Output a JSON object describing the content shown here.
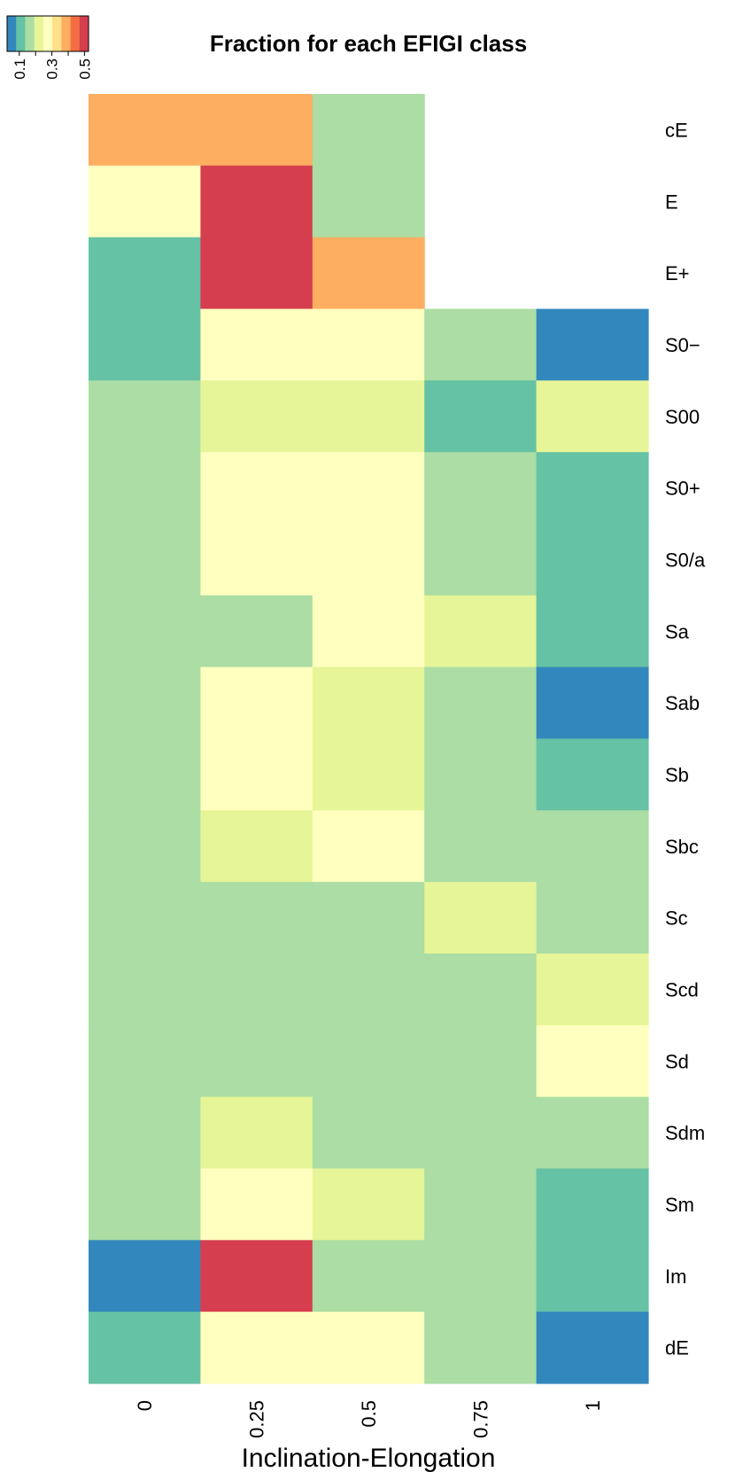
{
  "chart_data": {
    "type": "heatmap",
    "title": "Fraction for each EFIGI class",
    "xlabel": "Inclination-Elongation",
    "ylabel": "",
    "x_categories": [
      "0",
      "0.25",
      "0.5",
      "0.75",
      "1"
    ],
    "y_categories": [
      "cE",
      "E",
      "E+",
      "S0−",
      "S00",
      "S0+",
      "S0/a",
      "Sa",
      "Sab",
      "Sb",
      "Sbc",
      "Sc",
      "Scd",
      "Sd",
      "Sdm",
      "Sm",
      "Im",
      "dE"
    ],
    "values": [
      [
        0.4,
        0.4,
        0.18,
        null,
        null
      ],
      [
        0.25,
        0.5,
        0.18,
        null,
        null
      ],
      [
        0.12,
        0.5,
        0.4,
        null,
        null
      ],
      [
        0.12,
        0.25,
        0.3,
        0.15,
        0.05
      ],
      [
        0.15,
        0.2,
        0.2,
        0.12,
        0.2
      ],
      [
        0.15,
        0.25,
        0.25,
        0.15,
        0.12
      ],
      [
        0.18,
        0.25,
        0.25,
        0.15,
        0.12
      ],
      [
        0.15,
        0.18,
        0.25,
        0.2,
        0.12
      ],
      [
        0.15,
        0.3,
        0.2,
        0.15,
        0.05
      ],
      [
        0.15,
        0.25,
        0.2,
        0.15,
        0.12
      ],
      [
        0.15,
        0.2,
        0.3,
        0.15,
        0.15
      ],
      [
        0.18,
        0.18,
        0.15,
        0.2,
        0.18
      ],
      [
        0.18,
        0.18,
        0.15,
        0.15,
        0.2
      ],
      [
        0.15,
        0.18,
        0.15,
        0.18,
        0.3
      ],
      [
        0.18,
        0.2,
        0.18,
        0.15,
        0.18
      ],
      [
        0.18,
        0.25,
        0.2,
        0.15,
        0.12
      ],
      [
        0.05,
        0.5,
        0.18,
        0.15,
        0.12
      ],
      [
        0.12,
        0.3,
        0.3,
        0.15,
        0.05
      ]
    ],
    "color_key": {
      "tick_labels": [
        "0.1",
        "0.3",
        "0.5"
      ],
      "tick_values": [
        0.1,
        0.3,
        0.5
      ],
      "range": [
        0.025,
        0.525
      ],
      "colors": [
        "#3288bd",
        "#66c2a5",
        "#abdda4",
        "#e6f598",
        "#ffffbf",
        "#fee08b",
        "#fdae61",
        "#f46d43",
        "#d53e4f"
      ]
    },
    "legend_position": "top-left",
    "grid": false
  }
}
